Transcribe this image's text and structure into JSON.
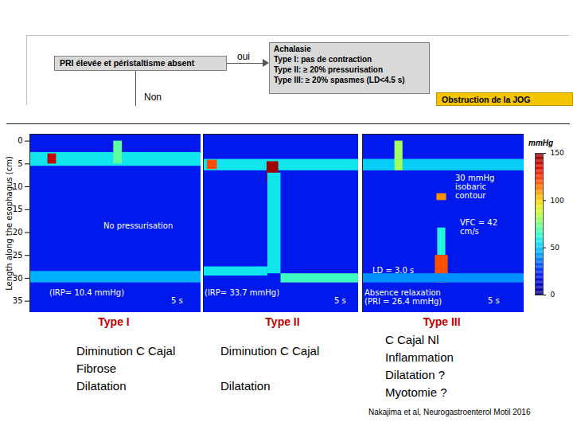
{
  "flowchart": {
    "condition": "PRI élevée et péristaltisme absent",
    "yes": "oui",
    "no": "Non",
    "result": {
      "title": "Achalasie",
      "lines": [
        "Type I: pas de contraction",
        "Type II: ≥ 20% pressurisation",
        "Type III: ≥ 20% spasmes (LD<4.5 s)"
      ]
    },
    "next": "Obstruction de la JOG"
  },
  "colorbar": {
    "title": "mmHg",
    "range": [
      0,
      150
    ],
    "ticks": [
      0,
      50,
      100,
      150
    ]
  },
  "chart_data": [
    {
      "type": "heatmap",
      "title": "Type I",
      "ylabel": "Length along the esophagus (cm)",
      "xlim": [
        0,
        20
      ],
      "ylim": [
        -1.5,
        37.5
      ],
      "yticks": [
        0,
        5,
        10,
        15,
        20,
        25,
        30,
        35
      ],
      "tick_labels": "y",
      "background": 20,
      "regions": [
        {
          "t": [
            0,
            20
          ],
          "cm": [
            2.5,
            5.5
          ],
          "mmHg": 55
        },
        {
          "t": [
            2.1,
            3.1
          ],
          "cm": [
            2.8,
            5.0
          ],
          "mmHg": 140
        },
        {
          "t": [
            9.8,
            10.8
          ],
          "cm": [
            0,
            5
          ],
          "mmHg": 70
        },
        {
          "t": [
            0,
            20
          ],
          "cm": [
            28.5,
            31
          ],
          "mmHg": 45
        }
      ],
      "annotations": [
        "No pressurisation",
        "(IRP= 10.4 mmHg)",
        "5 s"
      ],
      "caption": [
        "Diminution C Cajal",
        "Fibrose",
        "Dilatation"
      ]
    },
    {
      "type": "heatmap",
      "title": "Type II",
      "xlim": [
        0,
        20
      ],
      "ylim": [
        -1.5,
        37.5
      ],
      "tick_labels": false,
      "background": 20,
      "regions": [
        {
          "t": [
            0,
            20
          ],
          "cm": [
            4,
            6.5
          ],
          "mmHg": 55
        },
        {
          "t": [
            0.5,
            1.8
          ],
          "cm": [
            4.2,
            6.2
          ],
          "mmHg": 120
        },
        {
          "t": [
            8.2,
            9.7
          ],
          "cm": [
            4.5,
            9
          ],
          "mmHg": 145
        },
        {
          "t": [
            8.3,
            10
          ],
          "cm": [
            7,
            29
          ],
          "mmHg": 55
        },
        {
          "t": [
            0,
            8.3
          ],
          "cm": [
            27.5,
            29.5
          ],
          "mmHg": 55
        },
        {
          "t": [
            10,
            20
          ],
          "cm": [
            29,
            31
          ],
          "mmHg": 65
        }
      ],
      "annotations": [
        "(IRP= 33.7 mmHg)",
        "5 s"
      ],
      "caption": [
        "Diminution C Cajal",
        null,
        "Dilatation"
      ]
    },
    {
      "type": "heatmap",
      "title": "Type III",
      "xlim": [
        0,
        20
      ],
      "ylim": [
        -1.5,
        37.5
      ],
      "tick_labels": false,
      "background": 20,
      "regions": [
        {
          "t": [
            0,
            20
          ],
          "cm": [
            4,
            6.5
          ],
          "mmHg": 50
        },
        {
          "t": [
            4.0,
            5.0
          ],
          "cm": [
            0,
            6.5
          ],
          "mmHg": 80
        },
        {
          "t": [
            9.2,
            10.4
          ],
          "cm": [
            11.5,
            13
          ],
          "mmHg": 110
        },
        {
          "t": [
            9.3,
            10.3
          ],
          "cm": [
            19,
            25
          ],
          "mmHg": 60
        },
        {
          "t": [
            9.0,
            10.6
          ],
          "cm": [
            25,
            31
          ],
          "mmHg": 120
        },
        {
          "t": [
            0,
            20
          ],
          "cm": [
            29,
            31
          ],
          "mmHg": 40
        }
      ],
      "annotations": [
        "30 mmHg isobaric contour",
        "VFC = 42 cm/s",
        "LD = 3.0 s",
        "Absence relaxation",
        "(PRI = 26.4 mmHg)",
        "5 s"
      ],
      "caption": [
        "C Cajal Nl",
        "Inflammation",
        "Dilatation ?",
        "Myotomie ?"
      ]
    }
  ],
  "citation": "Nakajima et al, Neurogastroenterol Motil 2016"
}
